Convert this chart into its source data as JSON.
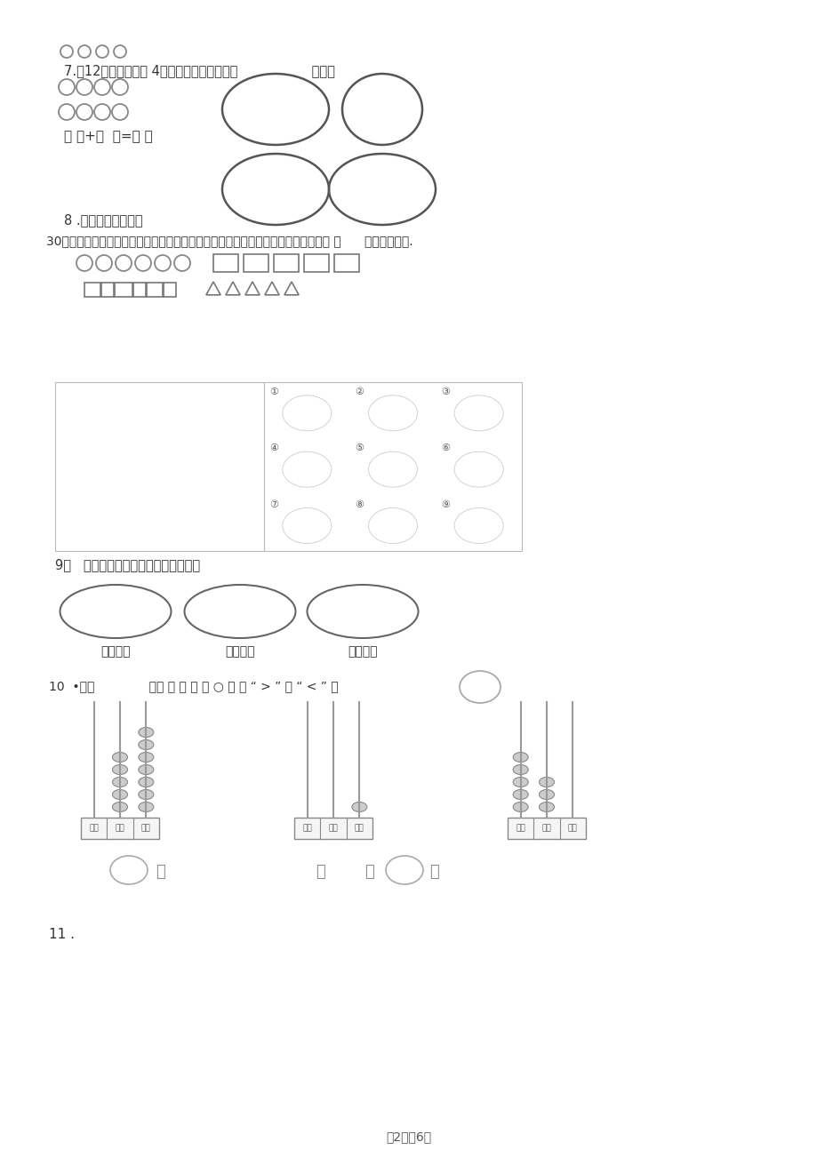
{
  "page_footer": "第2页兲6页",
  "background_color": "#ffffff",
  "q7_line1": "7.把12个图平均画在 4个圈里，每个圈里画（                  ）个。",
  "q7_formula": "（ ）+（  ）=（ ）",
  "q8_line1": "8 .影院里一排座位有",
  "q8_line2": "30个，小明和小红两人去看电影，他们要坐在一起，并且小红坐在小明的左边，一共 有      种不同的坐法.",
  "q9_line": "9．   聪明的小朋友帮这些小动物找家。",
  "q9_labels": [
    "地上跑的",
    "天上飞的",
    "水里游的"
  ],
  "q10_line": "10  •在（              ）里 填 数 ， 在 ○ 里 填 “ > ” 或 “ < ” 。",
  "q11_line": "11 .",
  "text_color": "#333333",
  "gray": "#777777",
  "light_gray": "#aaaaaa",
  "bead_fill": "#cccccc",
  "bead_edge": "#888888"
}
